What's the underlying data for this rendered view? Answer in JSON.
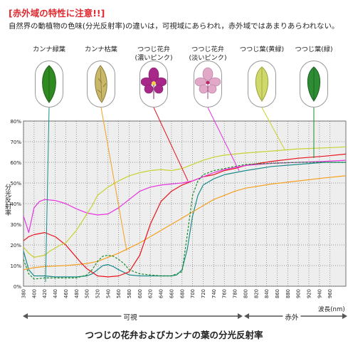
{
  "heading": "[赤外域の特性に注意!!]",
  "subtitle": "自然界の動植物の色味(分光反射率)の違いは，可視域にあらわれ，赤外域ではあまりあらわれない。",
  "specimens": [
    {
      "label_line1": "カンナ緑葉",
      "label_line2": "",
      "icon": "green-leaf-icon"
    },
    {
      "label_line1": "カンナ枯葉",
      "label_line2": "",
      "icon": "dead-leaf-icon"
    },
    {
      "label_line1": "つつじ花弁",
      "label_line2": "(濃いピンク)",
      "icon": "dark-pink-azalea-icon"
    },
    {
      "label_line1": "つつじ花弁",
      "label_line2": "(淡いピンク)",
      "icon": "light-pink-azalea-icon"
    },
    {
      "label_line1": "つつじ葉(黄緑)",
      "label_line2": "",
      "icon": "yellow-green-leaf-icon"
    },
    {
      "label_line1": "つつじ葉(緑)",
      "label_line2": "",
      "icon": "azalea-green-leaf-icon"
    }
  ],
  "regions": {
    "visible": "可視",
    "infrared": "赤外"
  },
  "caption": "つつじの花弁およびカンナの葉の分光反射率",
  "colors": {
    "heading": "#e0282e",
    "canna_green": "#1a8a8a",
    "canna_dead": "#f5a020",
    "azalea_dark_pink": "#e8141e",
    "azalea_light_pink": "#e633e0",
    "azalea_yellow_green": "#c8d232",
    "azalea_green": "#1a8c2a",
    "plot_background": "#eeeeee"
  },
  "chart_data": {
    "type": "line",
    "title": "つつじの花弁およびカンナの葉の分光反射率",
    "xlabel": "波長(nm)",
    "ylabel": "分光反射率",
    "xlim": [
      380,
      990
    ],
    "ylim": [
      0,
      80
    ],
    "x_ticks": [
      380,
      400,
      420,
      440,
      460,
      480,
      500,
      520,
      540,
      560,
      580,
      600,
      620,
      640,
      660,
      680,
      700,
      720,
      740,
      760,
      780,
      800,
      820,
      840,
      860,
      880,
      900,
      920,
      940,
      960
    ],
    "y_ticks": [
      0,
      10,
      20,
      30,
      40,
      50,
      60,
      70,
      80
    ],
    "y_tick_labels": [
      "0%",
      "10%",
      "20%",
      "30%",
      "40%",
      "50%",
      "60%",
      "70%",
      "80%"
    ],
    "grid": true,
    "series": [
      {
        "name": "カンナ緑葉",
        "color": "#1a8a8a",
        "dash": false,
        "x": [
          380,
          390,
          400,
          420,
          440,
          460,
          480,
          500,
          510,
          520,
          530,
          540,
          550,
          560,
          580,
          600,
          620,
          640,
          660,
          670,
          680,
          690,
          700,
          710,
          720,
          740,
          760,
          800,
          850,
          900,
          950,
          990
        ],
        "y": [
          17,
          8,
          5,
          5,
          4.5,
          4.5,
          4.5,
          5,
          6,
          8,
          10,
          10.5,
          9.5,
          8,
          5.5,
          5,
          5,
          5,
          5,
          5.5,
          8,
          18,
          34,
          44,
          49,
          52,
          54,
          56,
          58,
          59,
          60,
          60
        ]
      },
      {
        "name": "カンナ枯葉",
        "color": "#f5a020",
        "dash": false,
        "x": [
          380,
          400,
          420,
          440,
          460,
          480,
          500,
          520,
          540,
          560,
          580,
          600,
          620,
          640,
          660,
          680,
          700,
          720,
          740,
          760,
          780,
          800,
          850,
          900,
          950,
          990
        ],
        "y": [
          8,
          9,
          9.5,
          9.8,
          10,
          10.5,
          11,
          12,
          14,
          16,
          18.5,
          21,
          24,
          27,
          30,
          33,
          36,
          39,
          42,
          44,
          46,
          47.5,
          49.5,
          51,
          52.5,
          53.5
        ]
      },
      {
        "name": "つつじ花弁(濃いピンク)",
        "color": "#e8141e",
        "dash": false,
        "x": [
          380,
          390,
          400,
          410,
          420,
          430,
          440,
          450,
          460,
          470,
          480,
          490,
          500,
          520,
          540,
          560,
          580,
          600,
          620,
          640,
          660,
          680,
          700,
          720,
          740,
          760,
          780,
          800,
          850,
          900,
          950,
          990
        ],
        "y": [
          22,
          24,
          25,
          25.5,
          26,
          25,
          24,
          22,
          20,
          17,
          14,
          11,
          8.5,
          5,
          4.5,
          5,
          7,
          15,
          30,
          41,
          46,
          49,
          51,
          53,
          54,
          56,
          57,
          58.5,
          60.5,
          62,
          63,
          64
        ]
      },
      {
        "name": "つつじ花弁(淡いピンク)",
        "color": "#e633e0",
        "dash": false,
        "x": [
          380,
          385,
          390,
          395,
          400,
          410,
          420,
          440,
          460,
          480,
          500,
          520,
          540,
          560,
          580,
          600,
          620,
          640,
          660,
          680,
          700,
          720,
          740,
          760,
          780,
          800,
          850,
          900,
          950,
          990
        ],
        "y": [
          34,
          30,
          26,
          32,
          38,
          41,
          42,
          41.5,
          40,
          37.5,
          35.5,
          34.5,
          35,
          38,
          42,
          46,
          48,
          49,
          49.5,
          50,
          51,
          53,
          55,
          56.5,
          57.5,
          58.5,
          59.5,
          60,
          60.5,
          61
        ]
      },
      {
        "name": "つつじ葉(黄緑)",
        "color": "#c8d232",
        "dash": false,
        "x": [
          380,
          390,
          400,
          410,
          420,
          430,
          440,
          450,
          460,
          470,
          480,
          490,
          500,
          510,
          520,
          540,
          560,
          580,
          600,
          620,
          640,
          660,
          680,
          700,
          720,
          740,
          760,
          780,
          800,
          850,
          900,
          950,
          990
        ],
        "y": [
          19,
          16,
          14,
          14.5,
          15,
          17,
          18.5,
          20,
          21,
          24,
          27,
          31,
          35,
          39,
          44,
          48,
          51,
          53.5,
          55,
          56,
          56.5,
          56,
          57,
          59,
          61,
          62.5,
          63.5,
          64,
          64.5,
          65.5,
          66.5,
          67,
          67.5
        ]
      },
      {
        "name": "つつじ葉(緑)",
        "color": "#1a8c2a",
        "dash": true,
        "x": [
          380,
          390,
          400,
          420,
          440,
          460,
          480,
          500,
          510,
          520,
          530,
          540,
          550,
          560,
          570,
          580,
          600,
          620,
          640,
          660,
          680,
          690,
          700,
          710,
          720,
          740,
          760,
          780,
          800,
          850,
          900,
          950,
          990
        ],
        "y": [
          13,
          6,
          3.5,
          4,
          4,
          4,
          4,
          5.5,
          8,
          12,
          14.5,
          15,
          14.5,
          13,
          11,
          8,
          6,
          5.5,
          5,
          5,
          7,
          25,
          44,
          51,
          54,
          56,
          57,
          58,
          59,
          59.5,
          60,
          60,
          60
        ]
      }
    ]
  }
}
